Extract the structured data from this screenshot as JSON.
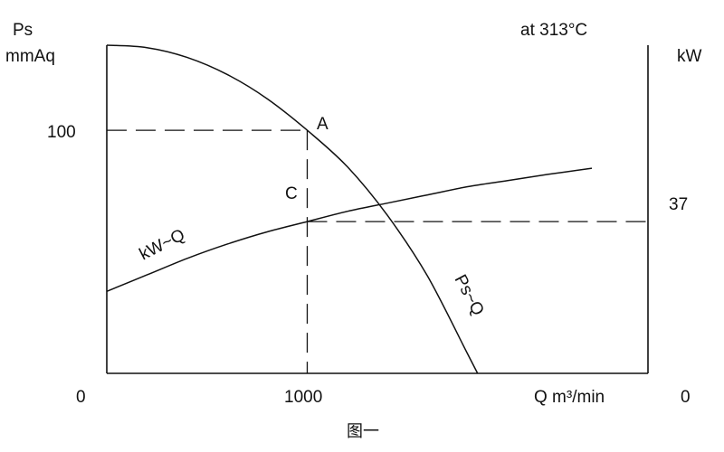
{
  "chart_data": {
    "type": "line",
    "title": "",
    "caption": "图一",
    "condition": "at 313°C",
    "left_axis": {
      "label_line1": "Ps",
      "label_line2": "mmAq",
      "ticks": [
        "100"
      ],
      "tick_values": [
        100
      ],
      "origin": "0"
    },
    "right_axis": {
      "label": "kW",
      "ticks": [
        "37"
      ],
      "tick_values": [
        37
      ],
      "origin": "0"
    },
    "x_axis": {
      "label": "Q m³/min",
      "ticks": [
        "1000"
      ],
      "tick_values": [
        1000
      ],
      "origin": "0",
      "range": [
        0,
        2700
      ]
    },
    "ylim_left": [
      0,
      135
    ],
    "ylim_right": [
      0,
      80
    ],
    "series": [
      {
        "name": "Ps~Q",
        "axis": "left",
        "x": [
          0,
          200,
          400,
          600,
          800,
          1000,
          1200,
          1400,
          1600,
          1800,
          1850
        ],
        "y": [
          135,
          134,
          130,
          123,
          113,
          100,
          85,
          65,
          40,
          8,
          0
        ]
      },
      {
        "name": "kW~Q",
        "axis": "right",
        "x": [
          0,
          200,
          400,
          600,
          800,
          1000,
          1200,
          1400,
          1600,
          1800,
          2000,
          2200,
          2420
        ],
        "y": [
          20,
          24,
          28,
          31.5,
          34.5,
          37,
          39.5,
          41.5,
          43.5,
          45.5,
          47,
          48.5,
          50
        ]
      }
    ],
    "points": [
      {
        "label": "A",
        "x": 1000,
        "y": 100,
        "axis": "left"
      },
      {
        "label": "C",
        "x": 1000,
        "y": 37,
        "axis": "right"
      }
    ]
  }
}
